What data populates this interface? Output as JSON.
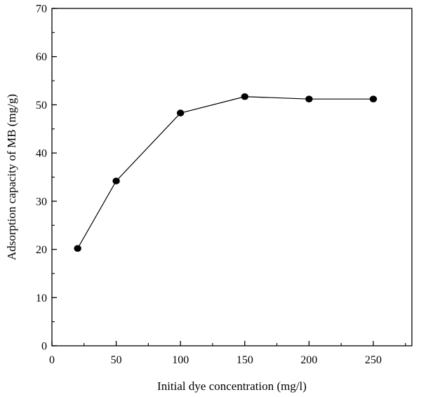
{
  "chart_data": {
    "type": "line",
    "title": "",
    "xlabel": "Initial dye concentration (mg/l)",
    "ylabel": "Adsorption capacity of MB (mg/g)",
    "xlim": [
      0,
      280
    ],
    "ylim": [
      0,
      70
    ],
    "x_ticks": [
      0,
      50,
      100,
      150,
      200,
      250
    ],
    "y_ticks": [
      0,
      10,
      20,
      30,
      40,
      50,
      60,
      70
    ],
    "x_tick_labels": [
      "0",
      "50",
      "100",
      "150",
      "200",
      "250"
    ],
    "y_tick_labels": [
      "0",
      "10",
      "20",
      "30",
      "40",
      "50",
      "60",
      "70"
    ],
    "grid": false,
    "series": [
      {
        "x": [
          20,
          50,
          100,
          150,
          200,
          250
        ],
        "values": [
          20.2,
          34.2,
          48.3,
          51.7,
          51.2,
          51.2
        ],
        "color": "#000000",
        "marker": "circle"
      }
    ]
  }
}
